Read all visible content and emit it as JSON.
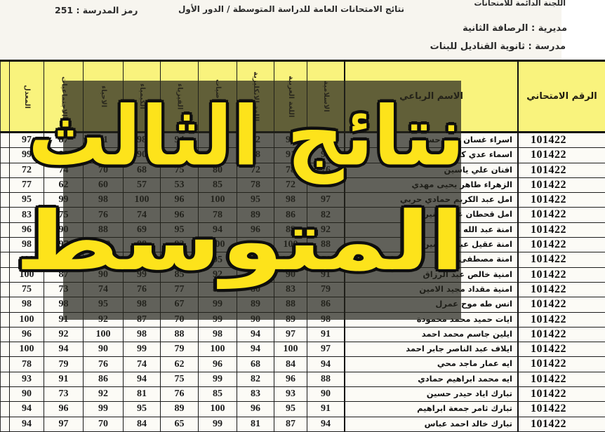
{
  "meta_header": {
    "committee": "اللجنة الدائمة للامتحانات",
    "exam_title": "نتائج الامتحانات العامة للدراسة المتوسطة / الدور الأول",
    "school_code": "رمز المدرسة : 251",
    "directorate": "مديرية : الرصافة الثانية",
    "school": "مدرسة : ثانوية القناديل للبنات"
  },
  "watermark": {
    "line1": "نتائج الثالث",
    "line2": "المتوسط",
    "text_color": "#fde31b",
    "overlay_color": "rgba(37,37,29,0.72)"
  },
  "colors": {
    "header_yellow": "#f9f37d",
    "paper": "#f7f5ef",
    "grid_line": "#1a1a1a"
  },
  "table": {
    "headers": {
      "name": "الاسم الرباعي",
      "exam_no": "الرقم الامتحاني",
      "subjects_ltr": [
        "المعدل",
        "الاجتماعيات",
        "الاحياء",
        "الكيمياء",
        "الفيزياء",
        "الرياضيات",
        "اللغة الانكليزية",
        "اللغة العربية",
        "الاسلامية"
      ]
    },
    "rows": [
      {
        "exam_no": "101422",
        "name": "اسراء غسان سعد حسن",
        "grades": [
          97,
          87,
          91,
          98,
          94,
          100,
          92,
          95,
          96
        ]
      },
      {
        "exam_no": "101422",
        "name": "اسماء عدي كاظم",
        "grades": [
          99,
          80,
          85,
          90,
          92,
          95,
          88,
          91,
          90
        ]
      },
      {
        "exam_no": "101422",
        "name": "افنان علي ياسين",
        "grades": [
          72,
          74,
          70,
          68,
          75,
          80,
          72,
          78,
          76
        ]
      },
      {
        "exam_no": "101422",
        "name": "الزهراء طاهر يحيى مهدي",
        "grades": [
          77,
          62,
          60,
          57,
          53,
          85,
          78,
          72,
          68
        ]
      },
      {
        "exam_no": "101422",
        "name": "امل عبد الكريم حمادي حربي",
        "grades": [
          95,
          99,
          98,
          100,
          96,
          100,
          95,
          98,
          97
        ]
      },
      {
        "exam_no": "101422",
        "name": "امل قحطان عنين منير",
        "grades": [
          83,
          75,
          76,
          74,
          96,
          78,
          89,
          86,
          82
        ]
      },
      {
        "exam_no": "101422",
        "name": "امنة عبد الله محمد",
        "grades": [
          96,
          90,
          88,
          69,
          95,
          94,
          96,
          89,
          92
        ]
      },
      {
        "exam_no": "101422",
        "name": "امنة عقيل عبد الحسين",
        "grades": [
          98,
          97,
          100,
          88,
          92,
          100,
          90,
          100,
          88
        ]
      },
      {
        "exam_no": "101422",
        "name": "امنة مصطفى حسن",
        "grades": [
          100,
          97,
          88,
          100,
          90,
          95,
          92,
          94,
          96
        ]
      },
      {
        "exam_no": "101422",
        "name": "امنية خالص عبد الرزاق",
        "grades": [
          100,
          87,
          90,
          99,
          85,
          92,
          88,
          90,
          91
        ]
      },
      {
        "exam_no": "101422",
        "name": "امنية مقداد مجيد الامين",
        "grades": [
          75,
          73,
          74,
          76,
          77,
          83,
          80,
          83,
          79
        ]
      },
      {
        "exam_no": "101422",
        "name": "انس طه موح عمرل",
        "grades": [
          98,
          98,
          95,
          98,
          67,
          99,
          89,
          88,
          86
        ]
      },
      {
        "exam_no": "101422",
        "name": "ايات حميد محمد محمودة",
        "grades": [
          100,
          91,
          92,
          87,
          70,
          99,
          90,
          89,
          98
        ]
      },
      {
        "exam_no": "101422",
        "name": "ايلين جاسم محمد احمد",
        "grades": [
          96,
          92,
          100,
          98,
          88,
          98,
          94,
          97,
          91
        ]
      },
      {
        "exam_no": "101422",
        "name": "ايلاف عبد الناصر جابر احمد",
        "grades": [
          100,
          94,
          90,
          99,
          79,
          100,
          94,
          100,
          97
        ]
      },
      {
        "exam_no": "101422",
        "name": "ايه عمار ماجد محي",
        "grades": [
          78,
          79,
          76,
          74,
          62,
          96,
          68,
          84,
          94
        ]
      },
      {
        "exam_no": "101422",
        "name": "ايه محمد ابراهيم حمادي",
        "grades": [
          93,
          91,
          86,
          94,
          75,
          99,
          82,
          96,
          88
        ]
      },
      {
        "exam_no": "101422",
        "name": "تبارك اياد حيدر حسين",
        "grades": [
          90,
          73,
          92,
          81,
          76,
          85,
          83,
          93,
          90
        ]
      },
      {
        "exam_no": "101422",
        "name": "تبارك ثامر جمعة ابراهيم",
        "grades": [
          94,
          96,
          99,
          95,
          89,
          100,
          96,
          95,
          91
        ]
      },
      {
        "exam_no": "101422",
        "name": "تبارك خالد احمد عباس",
        "grades": [
          94,
          97,
          70,
          84,
          65,
          99,
          81,
          87,
          94
        ]
      }
    ]
  }
}
